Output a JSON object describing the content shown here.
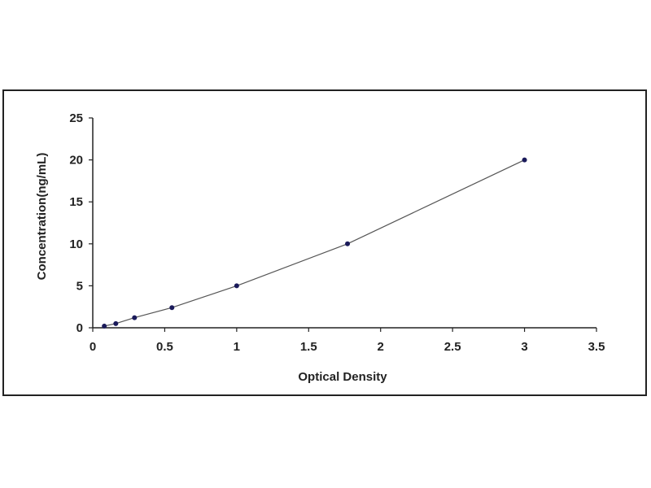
{
  "chart_data": {
    "type": "scatter",
    "xlabel": "Optical Density",
    "ylabel": "Concentration(ng/mL)",
    "xlim": [
      0,
      3.5
    ],
    "ylim": [
      0,
      25
    ],
    "xticks": [
      "0",
      "0.5",
      "1",
      "1.5",
      "2",
      "2.5",
      "3",
      "3.5"
    ],
    "yticks": [
      "0",
      "5",
      "10",
      "15",
      "20",
      "25"
    ],
    "grid": false,
    "series": [
      {
        "x": [
          0.08,
          0.16,
          0.29,
          0.55,
          1.0,
          1.77,
          3.0
        ],
        "y": [
          0.2,
          0.5,
          1.2,
          2.4,
          5,
          10,
          20
        ]
      }
    ],
    "trendline": true,
    "colors": {
      "marker": "#1a1a5a",
      "line": "#555555",
      "axis": "#222222"
    }
  }
}
